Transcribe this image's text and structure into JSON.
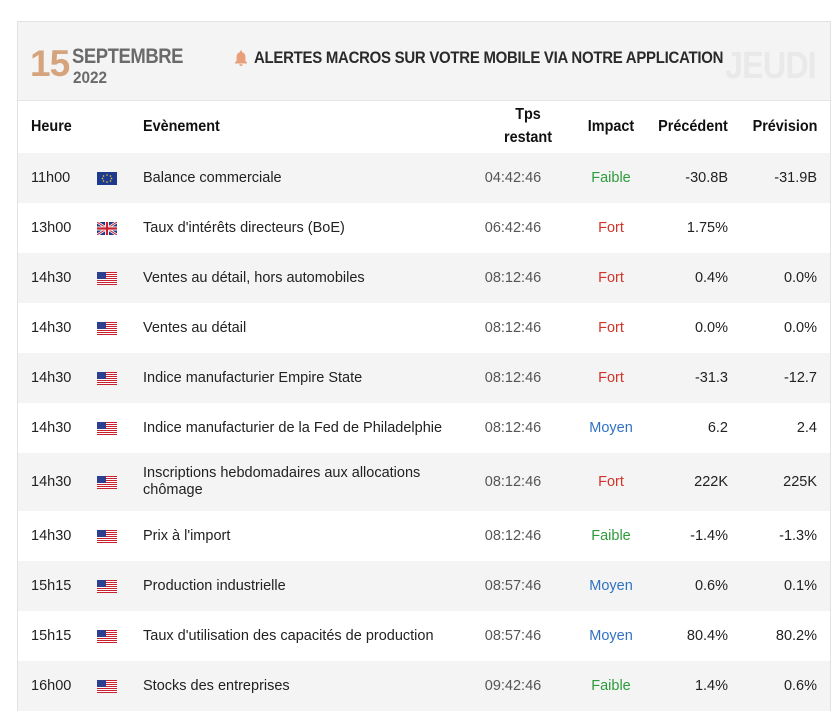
{
  "header": {
    "day": "15",
    "month": "SEPTEMBRE",
    "year": "2022",
    "alert_text": "ALERTES MACROS SUR VOTRE MOBILE VIA NOTRE APPLICATION",
    "weekday": "JEUDI",
    "bell_color": "#e9a07a"
  },
  "columns": {
    "heure": "Heure",
    "evenement": "Evènement",
    "tps_line1": "Tps",
    "tps_line2": "restant",
    "impact": "Impact",
    "precedent": "Précédent",
    "prevision": "Prévision"
  },
  "colors": {
    "faible": "#2e9b3a",
    "fort": "#d2352a",
    "moyen": "#2f72c3",
    "row_shade": "#f4f4f4"
  },
  "rows": [
    {
      "time": "11h00",
      "flag": "eu-flag-icon",
      "event": "Balance commerciale",
      "tps": "04:42:46",
      "impact": "Faible",
      "prev": "-30.8B",
      "fore": "-31.9B"
    },
    {
      "time": "13h00",
      "flag": "uk-flag-icon",
      "event": "Taux d'intérêts directeurs (BoE)",
      "tps": "06:42:46",
      "impact": "Fort",
      "prev": "1.75%",
      "fore": ""
    },
    {
      "time": "14h30",
      "flag": "us-flag-icon",
      "event": "Ventes au détail, hors automobiles",
      "tps": "08:12:46",
      "impact": "Fort",
      "prev": "0.4%",
      "fore": "0.0%"
    },
    {
      "time": "14h30",
      "flag": "us-flag-icon",
      "event": "Ventes au détail",
      "tps": "08:12:46",
      "impact": "Fort",
      "prev": "0.0%",
      "fore": "0.0%"
    },
    {
      "time": "14h30",
      "flag": "us-flag-icon",
      "event": "Indice manufacturier Empire State",
      "tps": "08:12:46",
      "impact": "Fort",
      "prev": "-31.3",
      "fore": "-12.7"
    },
    {
      "time": "14h30",
      "flag": "us-flag-icon",
      "event": "Indice manufacturier de la Fed de Philadelphie",
      "tps": "08:12:46",
      "impact": "Moyen",
      "prev": "6.2",
      "fore": "2.4"
    },
    {
      "time": "14h30",
      "flag": "us-flag-icon",
      "event": "Inscriptions hebdomadaires aux allocations chômage",
      "tps": "08:12:46",
      "impact": "Fort",
      "prev": "222K",
      "fore": "225K"
    },
    {
      "time": "14h30",
      "flag": "us-flag-icon",
      "event": "Prix à l'import",
      "tps": "08:12:46",
      "impact": "Faible",
      "prev": "-1.4%",
      "fore": "-1.3%"
    },
    {
      "time": "15h15",
      "flag": "us-flag-icon",
      "event": "Production industrielle",
      "tps": "08:57:46",
      "impact": "Moyen",
      "prev": "0.6%",
      "fore": "0.1%"
    },
    {
      "time": "15h15",
      "flag": "us-flag-icon",
      "event": "Taux d'utilisation des capacités de production",
      "tps": "08:57:46",
      "impact": "Moyen",
      "prev": "80.4%",
      "fore": "80.2%"
    },
    {
      "time": "16h00",
      "flag": "us-flag-icon",
      "event": "Stocks des entreprises",
      "tps": "09:42:46",
      "impact": "Faible",
      "prev": "1.4%",
      "fore": "0.6%"
    }
  ]
}
